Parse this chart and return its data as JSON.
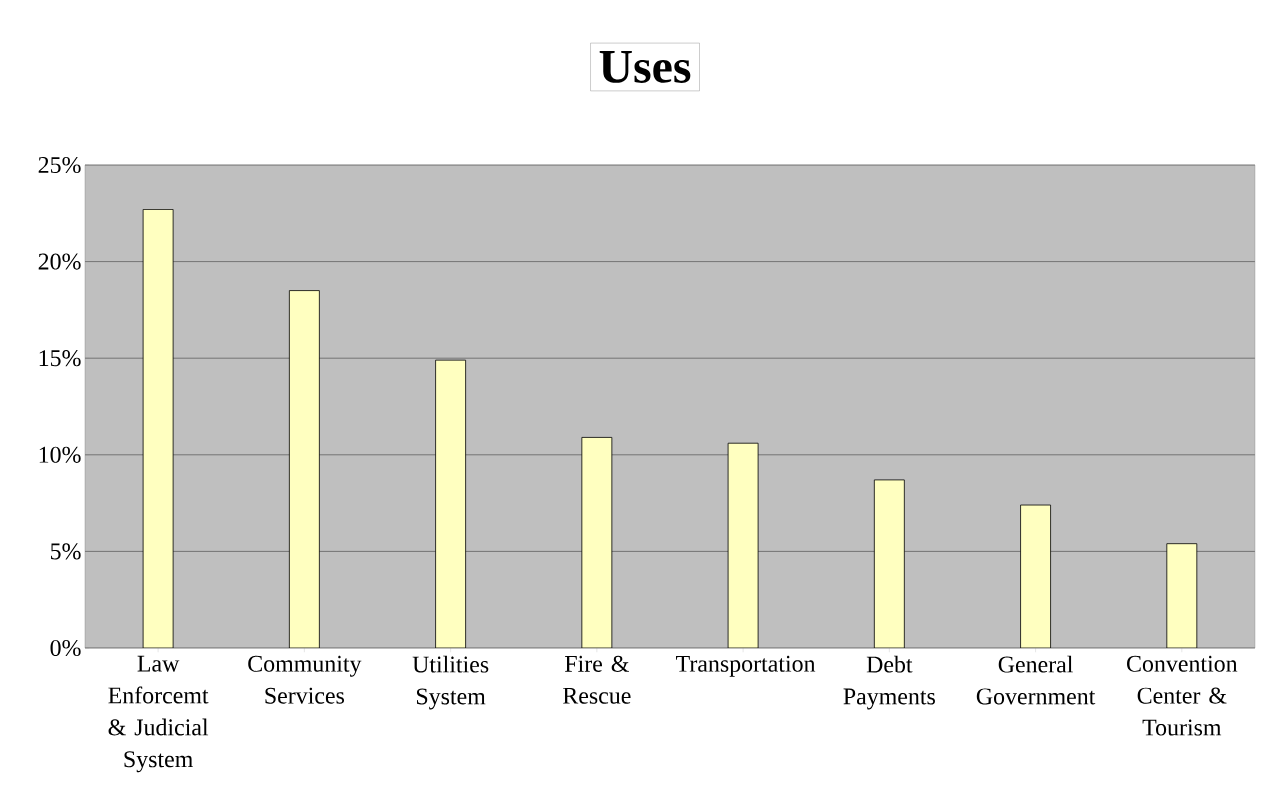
{
  "chart_data": {
    "type": "bar",
    "title": "Uses",
    "categories": [
      "Law Enforcemt & Judicial System",
      "Community Services",
      "Utilities System",
      "Fire & Rescue",
      "Transportation",
      "Debt Payments",
      "General Government",
      "Convention Center & Tourism"
    ],
    "values": [
      22.7,
      18.5,
      14.9,
      10.9,
      10.6,
      8.7,
      7.4,
      5.4
    ],
    "color": "#ffffc0",
    "ylim": [
      0,
      25
    ],
    "yticks": [
      {
        "value": 0,
        "label": "0%"
      },
      {
        "value": 5,
        "label": "5%"
      },
      {
        "value": 10,
        "label": "10%"
      },
      {
        "value": 15,
        "label": "15%"
      },
      {
        "value": 20,
        "label": "20%"
      },
      {
        "value": 25,
        "label": "25%"
      }
    ],
    "grid": "y"
  }
}
